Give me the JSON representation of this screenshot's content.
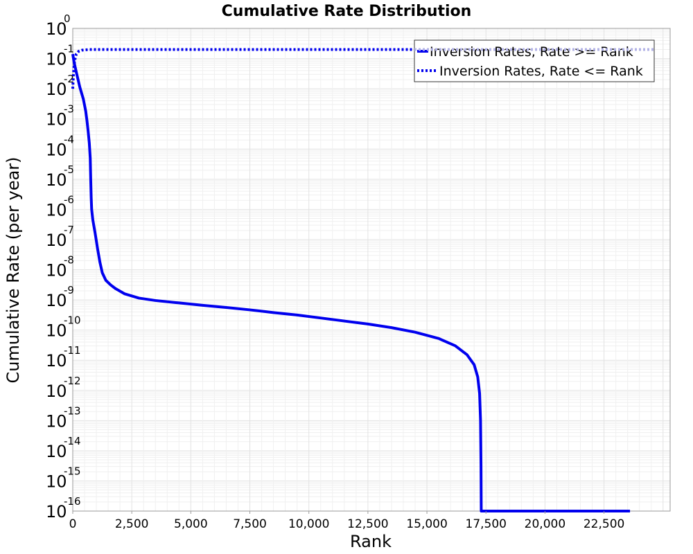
{
  "chart_data": {
    "type": "line",
    "title": "Cumulative Rate Distribution",
    "xlabel": "Rank",
    "ylabel": "Cumulative Rate (per year)",
    "xlim": [
      0,
      25300
    ],
    "ylim_log10": [
      -16,
      0
    ],
    "y_scale": "log",
    "grid": true,
    "legend_position": "top-right",
    "x_ticks": [
      {
        "value": 0,
        "label": "0"
      },
      {
        "value": 2500,
        "label": "2,500"
      },
      {
        "value": 5000,
        "label": "5,000"
      },
      {
        "value": 7500,
        "label": "7,500"
      },
      {
        "value": 10000,
        "label": "10,000"
      },
      {
        "value": 12500,
        "label": "12,500"
      },
      {
        "value": 15000,
        "label": "15,000"
      },
      {
        "value": 17500,
        "label": "17,500"
      },
      {
        "value": 20000,
        "label": "20,000"
      },
      {
        "value": 22500,
        "label": "22,500"
      }
    ],
    "y_ticks": [
      {
        "exp": 0,
        "base": "10",
        "exp_label": "0"
      },
      {
        "exp": -1,
        "base": "10",
        "exp_label": "-1"
      },
      {
        "exp": -2,
        "base": "10",
        "exp_label": "-2"
      },
      {
        "exp": -3,
        "base": "10",
        "exp_label": "-3"
      },
      {
        "exp": -4,
        "base": "10",
        "exp_label": "-4"
      },
      {
        "exp": -5,
        "base": "10",
        "exp_label": "-5"
      },
      {
        "exp": -6,
        "base": "10",
        "exp_label": "-6"
      },
      {
        "exp": -7,
        "base": "10",
        "exp_label": "-7"
      },
      {
        "exp": -8,
        "base": "10",
        "exp_label": "-8"
      },
      {
        "exp": -9,
        "base": "10",
        "exp_label": "-9"
      },
      {
        "exp": -10,
        "base": "10",
        "exp_label": "-10"
      },
      {
        "exp": -11,
        "base": "10",
        "exp_label": "-11"
      },
      {
        "exp": -12,
        "base": "10",
        "exp_label": "-12"
      },
      {
        "exp": -13,
        "base": "10",
        "exp_label": "-13"
      },
      {
        "exp": -14,
        "base": "10",
        "exp_label": "-14"
      },
      {
        "exp": -15,
        "base": "10",
        "exp_label": "-15"
      },
      {
        "exp": -16,
        "base": "10",
        "exp_label": "-16"
      }
    ],
    "series": [
      {
        "name": "Inversion Rates, Rate >= Rank",
        "style": "solid",
        "color": "#0000ee",
        "points_log10": [
          [
            0,
            -0.85
          ],
          [
            50,
            -1.1
          ],
          [
            150,
            -1.45
          ],
          [
            300,
            -1.95
          ],
          [
            450,
            -2.35
          ],
          [
            550,
            -2.75
          ],
          [
            600,
            -3.05
          ],
          [
            650,
            -3.4
          ],
          [
            700,
            -3.8
          ],
          [
            740,
            -4.3
          ],
          [
            760,
            -5.0
          ],
          [
            780,
            -5.6
          ],
          [
            800,
            -6.0
          ],
          [
            850,
            -6.35
          ],
          [
            950,
            -6.8
          ],
          [
            1050,
            -7.3
          ],
          [
            1150,
            -7.75
          ],
          [
            1250,
            -8.1
          ],
          [
            1400,
            -8.35
          ],
          [
            1600,
            -8.5
          ],
          [
            1800,
            -8.62
          ],
          [
            2200,
            -8.8
          ],
          [
            2800,
            -8.94
          ],
          [
            3500,
            -9.02
          ],
          [
            4500,
            -9.1
          ],
          [
            5500,
            -9.18
          ],
          [
            6500,
            -9.25
          ],
          [
            7500,
            -9.33
          ],
          [
            8500,
            -9.42
          ],
          [
            9500,
            -9.5
          ],
          [
            10500,
            -9.6
          ],
          [
            11500,
            -9.7
          ],
          [
            12500,
            -9.8
          ],
          [
            13500,
            -9.92
          ],
          [
            14500,
            -10.07
          ],
          [
            15500,
            -10.28
          ],
          [
            16200,
            -10.52
          ],
          [
            16700,
            -10.82
          ],
          [
            17000,
            -11.15
          ],
          [
            17150,
            -11.55
          ],
          [
            17230,
            -12.1
          ],
          [
            17270,
            -13.0
          ],
          [
            17290,
            -14.5
          ],
          [
            17300,
            -16.0
          ],
          [
            23600,
            -16.0
          ]
        ]
      },
      {
        "name": "Inversion Rates, Rate <= Rank",
        "style": "dotted",
        "color": "#0000ee",
        "points_log10": [
          [
            0,
            -2.0
          ],
          [
            30,
            -1.5
          ],
          [
            60,
            -1.2
          ],
          [
            100,
            -1.0
          ],
          [
            150,
            -0.85
          ],
          [
            250,
            -0.76
          ],
          [
            400,
            -0.72
          ],
          [
            700,
            -0.7
          ],
          [
            2000,
            -0.7
          ],
          [
            12000,
            -0.7
          ],
          [
            23600,
            -0.7
          ]
        ]
      }
    ]
  },
  "legend_overlay_color": "#b3b3e6"
}
